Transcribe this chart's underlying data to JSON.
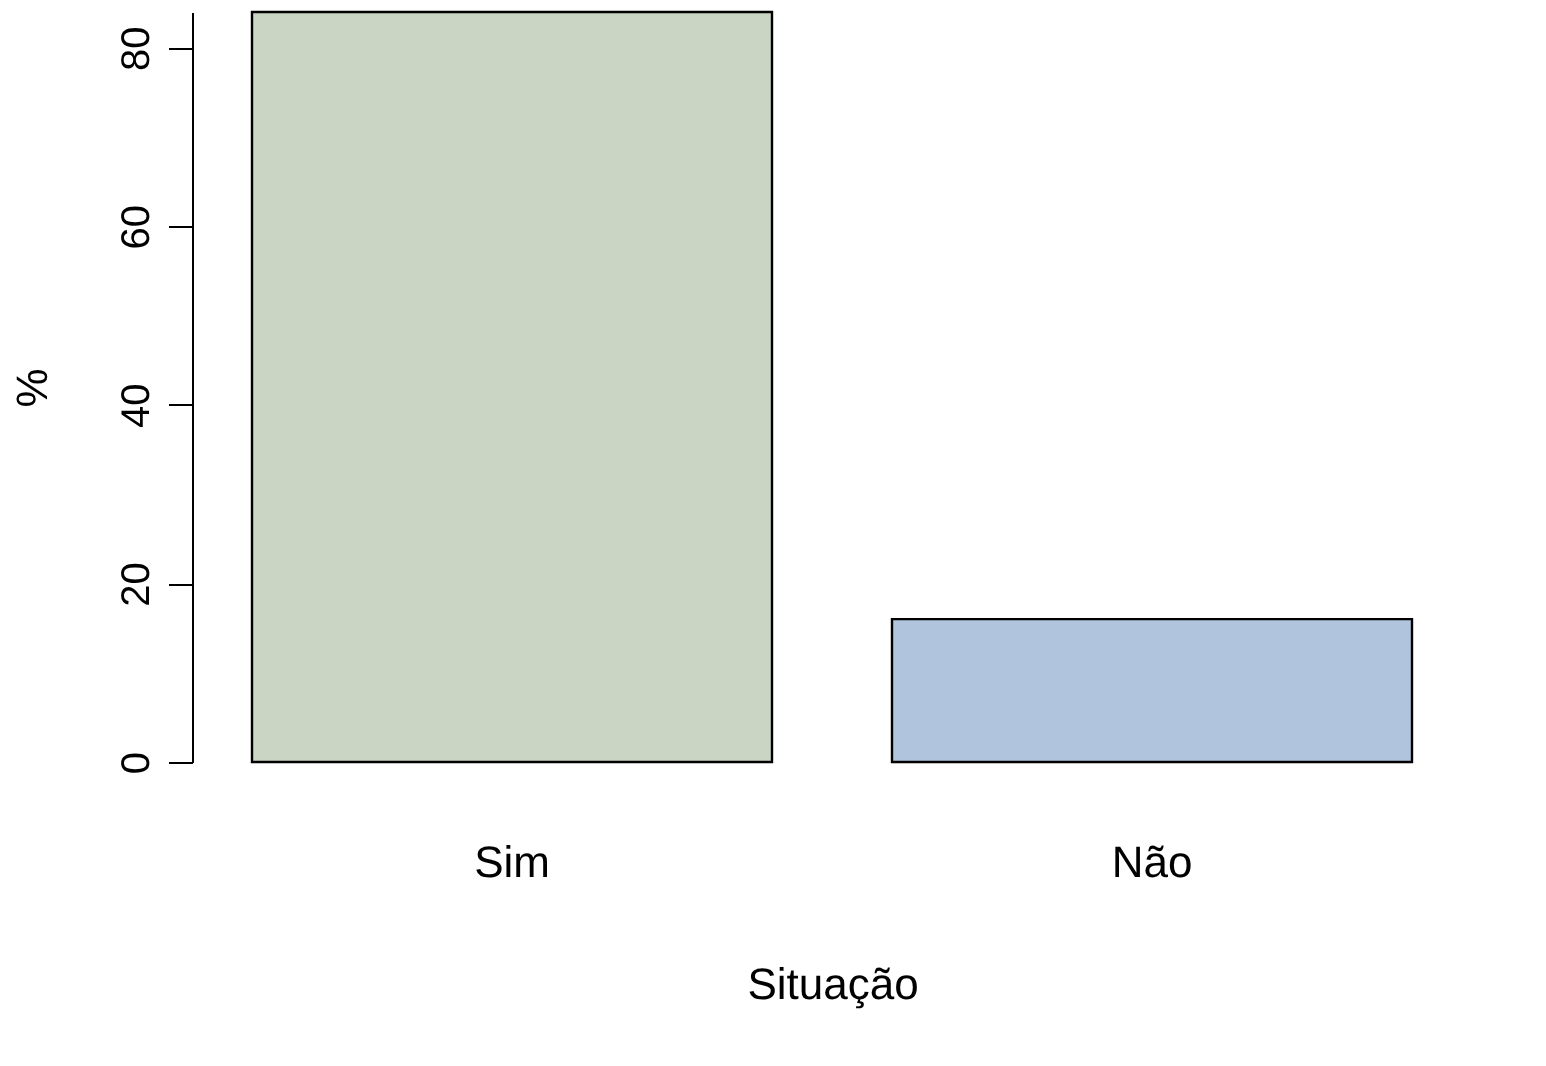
{
  "chart_data": {
    "type": "bar",
    "xlabel": "Situação",
    "ylabel": "%",
    "categories": [
      "Sim",
      "Não"
    ],
    "values": [
      84,
      16
    ],
    "colors": [
      "#cad5c3",
      "#b0c4de"
    ],
    "ylim": [
      0,
      84
    ],
    "yticks": [
      0,
      20,
      40,
      60,
      80
    ],
    "grid": false
  }
}
